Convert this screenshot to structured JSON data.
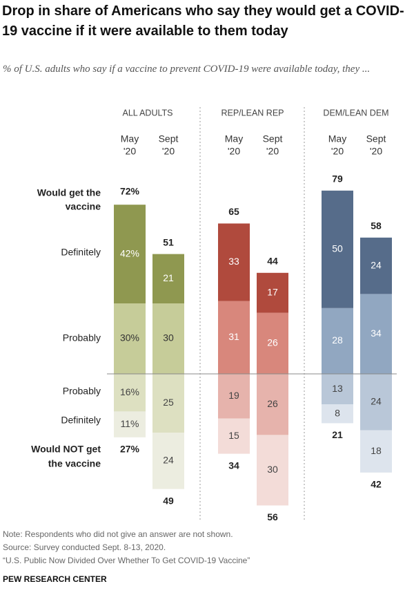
{
  "title": "Drop in share of Americans who say they would get a COVID-19 vaccine if it were available to them today",
  "subtitle": "% of U.S. adults who say if a vaccine to prevent COVID-19 were available today, they ...",
  "notes": {
    "note": "Note: Respondents who did not give an answer are not shown.",
    "source": "Source: Survey conducted Sept. 8-13, 2020.",
    "report": "“U.S. Public Now Divided Over Whether To Get COVID-19 Vaccine”"
  },
  "brand": "PEW RESEARCH CENTER",
  "colors": {
    "all": [
      "#8f9850",
      "#c6cc99",
      "#dde0c1",
      "#ecede0"
    ],
    "rep": [
      "#b04a3d",
      "#d8877c",
      "#e6b3ac",
      "#f3dcd8"
    ],
    "dem": [
      "#566c8a",
      "#91a7c1",
      "#b9c7d8",
      "#dde4ed"
    ]
  },
  "chart_data": {
    "type": "bar",
    "stacked": "diverging",
    "groups": [
      {
        "key": "all",
        "name": "ALL ADULTS"
      },
      {
        "key": "rep",
        "name": "REP/LEAN REP"
      },
      {
        "key": "dem",
        "name": "DEM/LEAN DEM"
      }
    ],
    "periods": [
      "May\n'20",
      "Sept\n'20"
    ],
    "row_labels": {
      "would_get": "Would get the vaccine",
      "definitely_get": "Definitely",
      "probably_get": "Probably",
      "probably_not": "Probably",
      "definitely_not": "Definitely",
      "would_not_get": "Would NOT get the vaccine"
    },
    "bars": [
      {
        "group": "all",
        "period": 0,
        "definitely_get": 42,
        "probably_get": 30,
        "probably_not": 16,
        "definitely_not": 11,
        "would_get": 72,
        "would_not_get": 27,
        "labels": {
          "definitely_get": "42%",
          "probably_get": "30%",
          "probably_not": "16%",
          "definitely_not": "11%",
          "would_get": "72%",
          "would_not_get": "27%"
        }
      },
      {
        "group": "all",
        "period": 1,
        "definitely_get": 21,
        "probably_get": 30,
        "probably_not": 25,
        "definitely_not": 24,
        "would_get": 51,
        "would_not_get": 49,
        "labels": {
          "definitely_get": "21",
          "probably_get": "30",
          "probably_not": "25",
          "definitely_not": "24",
          "would_get": "51",
          "would_not_get": "49"
        }
      },
      {
        "group": "rep",
        "period": 0,
        "definitely_get": 33,
        "probably_get": 31,
        "probably_not": 19,
        "definitely_not": 15,
        "would_get": 65,
        "would_not_get": 34,
        "labels": {
          "definitely_get": "33",
          "probably_get": "31",
          "probably_not": "19",
          "definitely_not": "15",
          "would_get": "65",
          "would_not_get": "34"
        }
      },
      {
        "group": "rep",
        "period": 1,
        "definitely_get": 17,
        "probably_get": 26,
        "probably_not": 26,
        "definitely_not": 30,
        "would_get": 44,
        "would_not_get": 56,
        "labels": {
          "definitely_get": "17",
          "probably_get": "26",
          "probably_not": "26",
          "definitely_not": "30",
          "would_get": "44",
          "would_not_get": "56"
        }
      },
      {
        "group": "dem",
        "period": 0,
        "definitely_get": 50,
        "probably_get": 28,
        "probably_not": 13,
        "definitely_not": 8,
        "would_get": 79,
        "would_not_get": 21,
        "labels": {
          "definitely_get": "50",
          "probably_get": "28",
          "probably_not": "13",
          "definitely_not": "8",
          "would_get": "79",
          "would_not_get": "21"
        }
      },
      {
        "group": "dem",
        "period": 1,
        "definitely_get": 24,
        "probably_get": 34,
        "probably_not": 24,
        "definitely_not": 18,
        "would_get": 58,
        "would_not_get": 42,
        "labels": {
          "definitely_get": "24",
          "probably_get": "34",
          "probably_not": "24",
          "definitely_not": "18",
          "would_get": "58",
          "would_not_get": "42"
        }
      }
    ]
  }
}
